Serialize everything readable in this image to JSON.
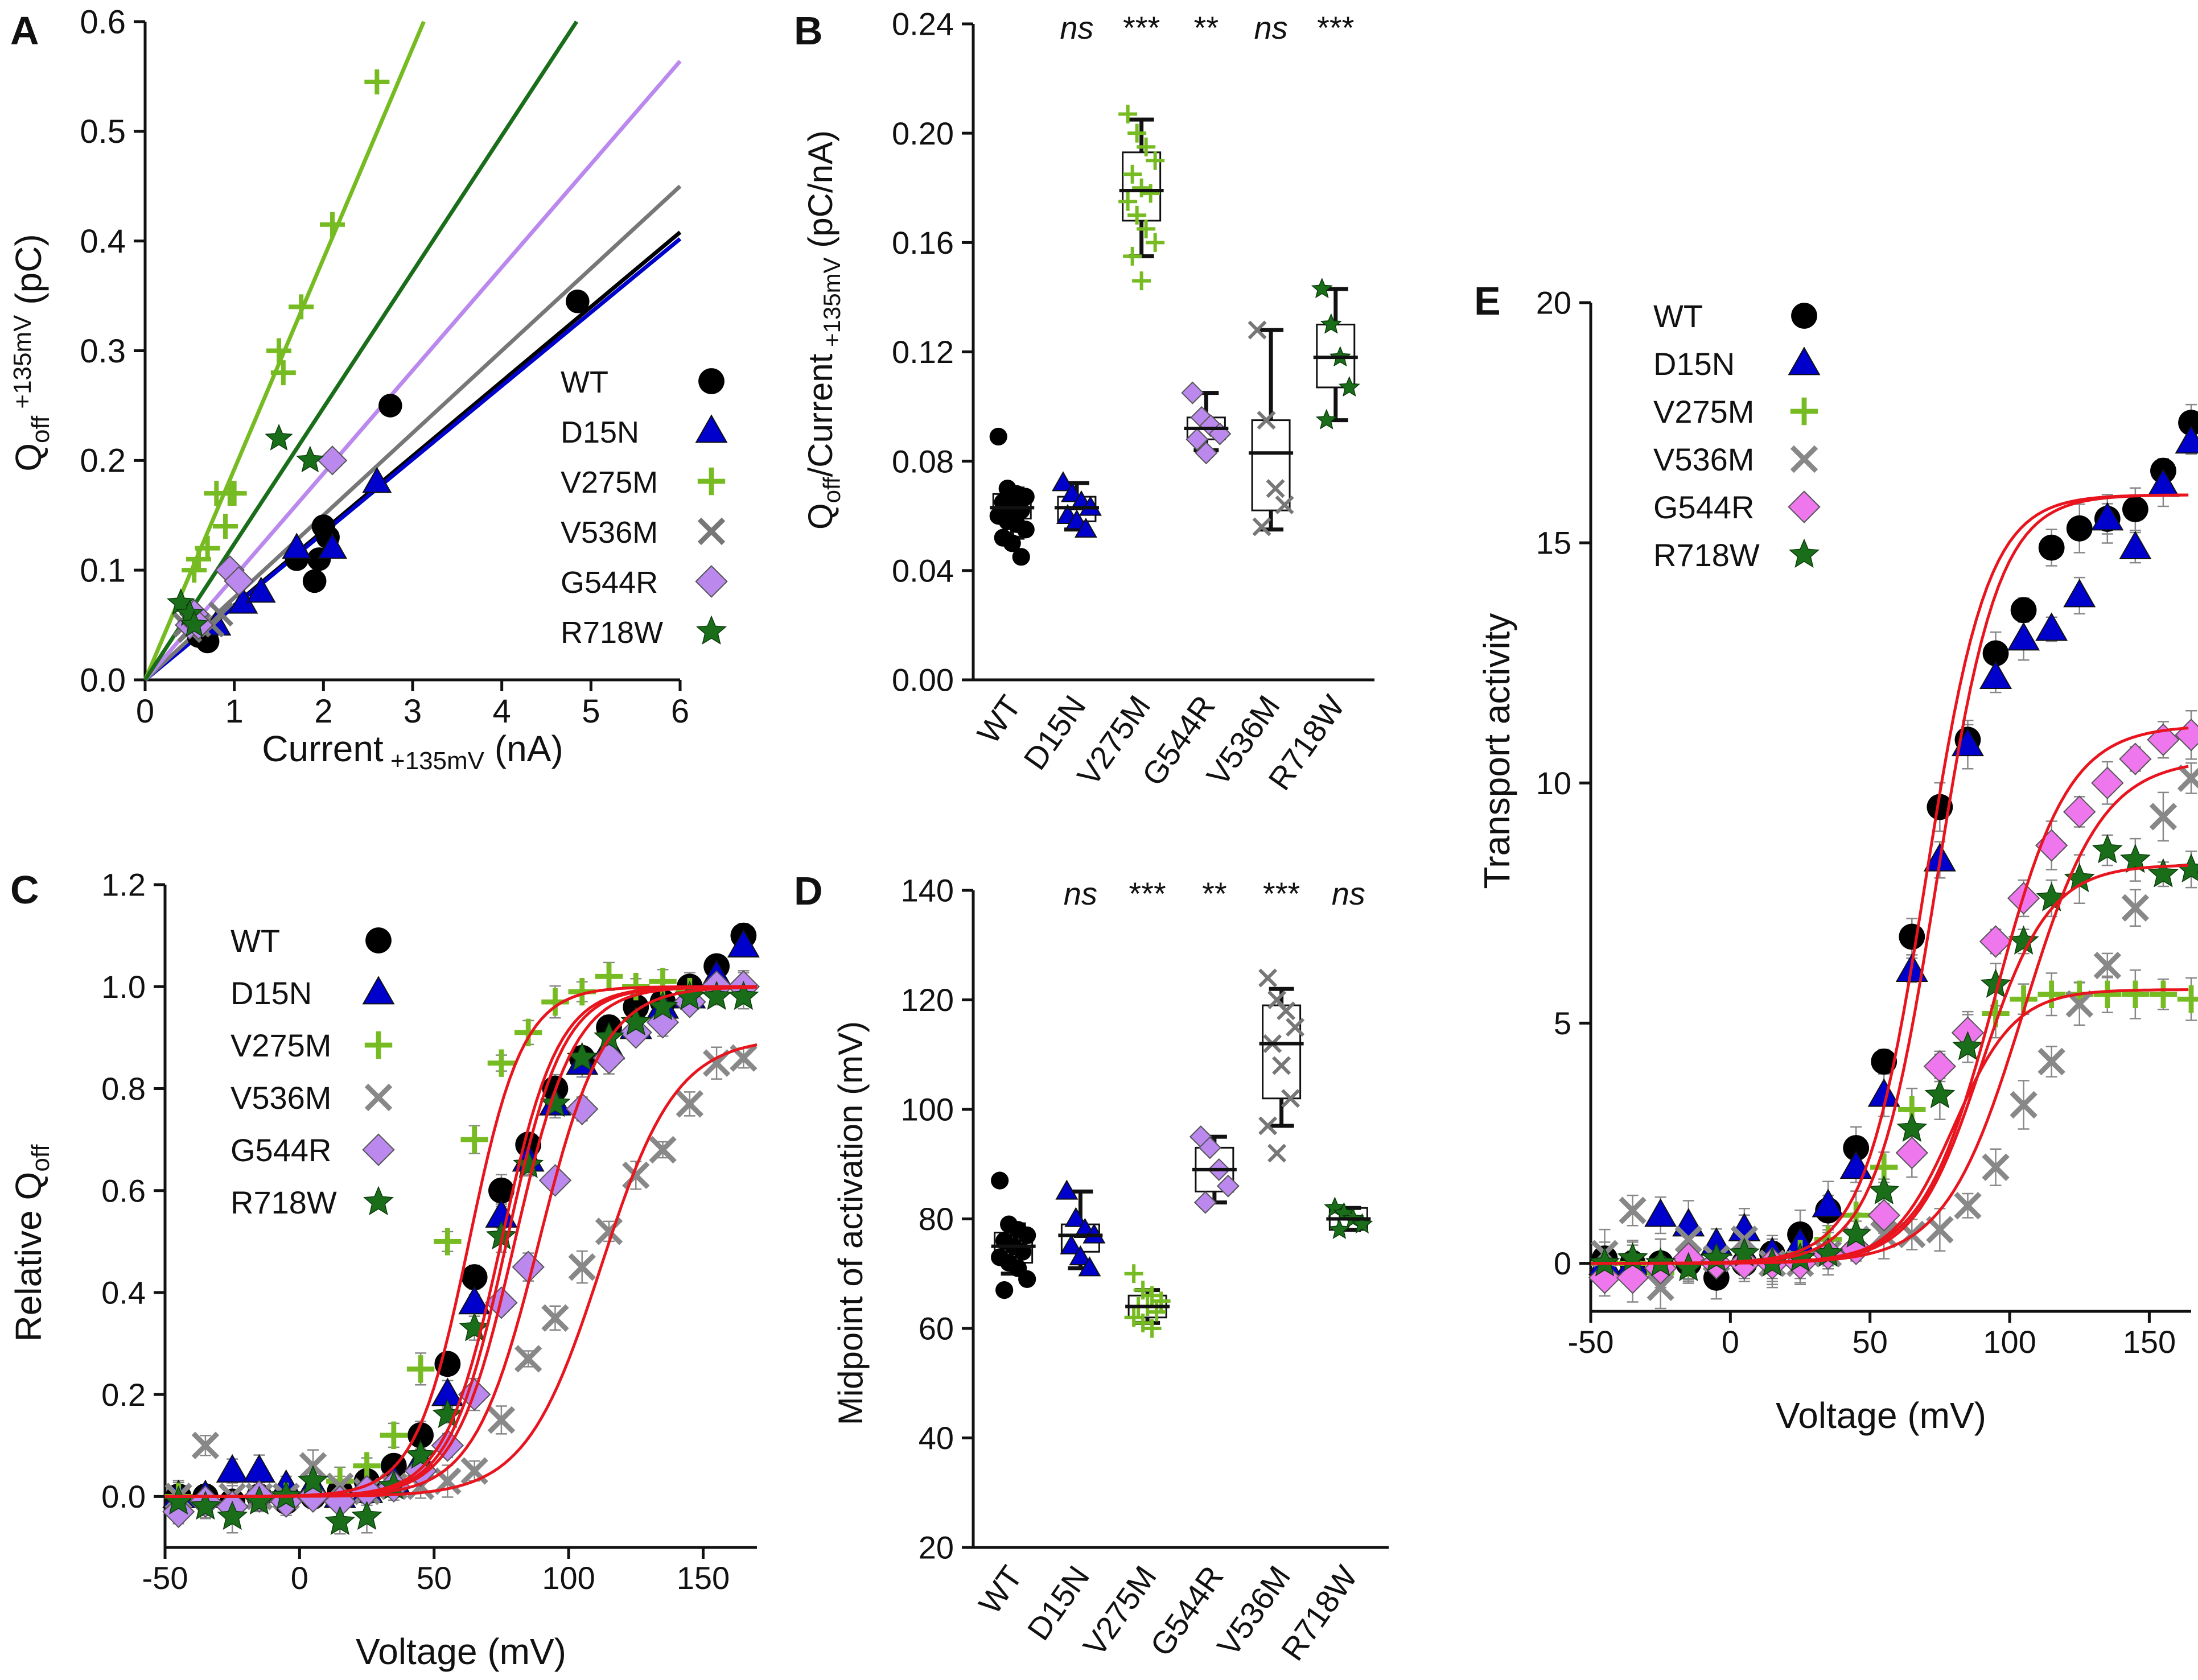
{
  "chart_data": [
    {
      "panel": "A",
      "type": "scatter",
      "xlabel": "Current",
      "xlabel_sub": "+135mV",
      "xlabel_unit": "(nA)",
      "ylabel": "Q",
      "ylabel_sub1": "off",
      "ylabel_sub2": " +135mV",
      "ylabel_unit": " (pC)",
      "xlim": [
        0,
        6
      ],
      "ylim": [
        0,
        0.6
      ],
      "xticks": [
        0,
        1,
        2,
        3,
        4,
        5,
        6
      ],
      "yticks": [
        "0.0",
        "0.1",
        "0.2",
        "0.3",
        "0.4",
        "0.5",
        "0.6"
      ],
      "legend_position": "bottom-right",
      "series": [
        {
          "name": "WT",
          "color": "#000000",
          "marker": "circle",
          "slope": 0.068,
          "points": [
            [
              0.6,
              0.04
            ],
            [
              0.7,
              0.035
            ],
            [
              1.7,
              0.11
            ],
            [
              1.9,
              0.09
            ],
            [
              1.95,
              0.11
            ],
            [
              2.0,
              0.14
            ],
            [
              2.05,
              0.13
            ],
            [
              2.75,
              0.25
            ],
            [
              4.85,
              0.345
            ]
          ]
        },
        {
          "name": "D15N",
          "color": "#0000cc",
          "marker": "triangle",
          "slope": 0.067,
          "points": [
            [
              0.8,
              0.05
            ],
            [
              1.1,
              0.07
            ],
            [
              1.3,
              0.08
            ],
            [
              1.7,
              0.12
            ],
            [
              2.1,
              0.12
            ],
            [
              2.6,
              0.18
            ]
          ]
        },
        {
          "name": "V275M",
          "color": "#77bb22",
          "marker": "plus",
          "slope": 0.192,
          "points": [
            [
              0.55,
              0.1
            ],
            [
              0.6,
              0.11
            ],
            [
              0.7,
              0.12
            ],
            [
              0.8,
              0.17
            ],
            [
              0.9,
              0.14
            ],
            [
              0.95,
              0.17
            ],
            [
              1.0,
              0.17
            ],
            [
              1.5,
              0.3
            ],
            [
              1.55,
              0.28
            ],
            [
              1.75,
              0.34
            ],
            [
              2.1,
              0.415
            ],
            [
              2.6,
              0.545
            ]
          ]
        },
        {
          "name": "V536M",
          "color": "#777777",
          "marker": "x",
          "slope": 0.075,
          "points": [
            [
              0.45,
              0.05
            ],
            [
              0.5,
              0.045
            ],
            [
              0.6,
              0.05
            ],
            [
              0.75,
              0.05
            ],
            [
              0.85,
              0.06
            ]
          ]
        },
        {
          "name": "G544R",
          "color": "#bb88ee",
          "marker": "diamond",
          "slope": 0.094,
          "points": [
            [
              0.5,
              0.05
            ],
            [
              0.55,
              0.06
            ],
            [
              0.6,
              0.05
            ],
            [
              0.95,
              0.1
            ],
            [
              1.05,
              0.09
            ],
            [
              2.1,
              0.2
            ]
          ]
        },
        {
          "name": "R718W",
          "color": "#1a6e1a",
          "marker": "star",
          "slope": 0.124,
          "points": [
            [
              0.4,
              0.07
            ],
            [
              0.5,
              0.06
            ],
            [
              0.55,
              0.05
            ],
            [
              1.5,
              0.22
            ],
            [
              1.85,
              0.2
            ]
          ]
        }
      ]
    },
    {
      "panel": "B",
      "type": "box",
      "ylabel": "Q",
      "ylabel_sub1": "off",
      "ylabel_mid": "/Current",
      "ylabel_sub2": " +135mV",
      "ylabel_unit": " (pC/nA)",
      "ylim": [
        0,
        0.24
      ],
      "yticks": [
        "0.00",
        "0.04",
        "0.08",
        "0.12",
        "0.16",
        "0.20",
        "0.24"
      ],
      "categories": [
        "WT",
        "D15N",
        "V275M",
        "G544R",
        "V536M",
        "R718W"
      ],
      "significance": [
        "",
        "ns",
        "***",
        "**",
        "ns",
        "***"
      ],
      "boxes": [
        {
          "name": "WT",
          "color": "#000000",
          "marker": "circle",
          "q1": 0.059,
          "median": 0.063,
          "q3": 0.068,
          "min": 0.052,
          "max": 0.07,
          "points": [
            0.089,
            0.07,
            0.068,
            0.067,
            0.065,
            0.063,
            0.062,
            0.06,
            0.058,
            0.057,
            0.055,
            0.052,
            0.05,
            0.045
          ]
        },
        {
          "name": "D15N",
          "color": "#0000cc",
          "marker": "triangle",
          "q1": 0.058,
          "median": 0.063,
          "q3": 0.067,
          "min": 0.055,
          "max": 0.072,
          "points": [
            0.072,
            0.068,
            0.065,
            0.063,
            0.06,
            0.058,
            0.055
          ]
        },
        {
          "name": "V275M",
          "color": "#77bb22",
          "marker": "plus",
          "q1": 0.168,
          "median": 0.179,
          "q3": 0.193,
          "min": 0.155,
          "max": 0.205,
          "points": [
            0.207,
            0.2,
            0.195,
            0.19,
            0.185,
            0.18,
            0.178,
            0.175,
            0.17,
            0.165,
            0.16,
            0.155,
            0.146
          ]
        },
        {
          "name": "G544R",
          "color": "#bb88ee",
          "marker": "diamond",
          "q1": 0.088,
          "median": 0.092,
          "q3": 0.096,
          "min": 0.084,
          "max": 0.105,
          "points": [
            0.105,
            0.096,
            0.093,
            0.09,
            0.088,
            0.083
          ]
        },
        {
          "name": "V536M",
          "color": "#777777",
          "marker": "x",
          "q1": 0.062,
          "median": 0.083,
          "q3": 0.095,
          "min": 0.055,
          "max": 0.128,
          "points": [
            0.128,
            0.095,
            0.07,
            0.064,
            0.056
          ]
        },
        {
          "name": "R718W",
          "color": "#1a6e1a",
          "marker": "star",
          "q1": 0.107,
          "median": 0.118,
          "q3": 0.13,
          "min": 0.095,
          "max": 0.143,
          "points": [
            0.143,
            0.13,
            0.118,
            0.107,
            0.095
          ]
        }
      ]
    },
    {
      "panel": "C",
      "type": "line",
      "xlabel": "Voltage (mV)",
      "ylabel": "Relative Q",
      "ylabel_sub1": "off",
      "xlim": [
        -50,
        170
      ],
      "ylim": [
        -0.1,
        1.2
      ],
      "xticks": [
        -50,
        0,
        50,
        100,
        150
      ],
      "yticks": [
        "0.0",
        "0.2",
        "0.4",
        "0.6",
        "0.8",
        "1.0",
        "1.2"
      ],
      "legend_position": "top-left",
      "voltages": [
        -45,
        -35,
        -25,
        -15,
        -5,
        5,
        15,
        25,
        35,
        45,
        55,
        65,
        75,
        85,
        95,
        105,
        115,
        125,
        135,
        145,
        155,
        165
      ],
      "series": [
        {
          "name": "WT",
          "color": "#000000",
          "marker": "circle",
          "fit": {
            "vhalf": 75,
            "k": 10.5,
            "amp": 1.0
          },
          "values": [
            0.0,
            0.0,
            -0.01,
            0.0,
            -0.01,
            0.0,
            0.01,
            0.03,
            0.06,
            0.12,
            0.26,
            0.43,
            0.6,
            0.69,
            0.8,
            0.86,
            0.92,
            0.96,
            0.97,
            1.0,
            1.04,
            1.1
          ]
        },
        {
          "name": "D15N",
          "color": "#0000cc",
          "marker": "triangle",
          "fit": {
            "vhalf": 77,
            "k": 10.5,
            "amp": 1.0
          },
          "values": [
            0.0,
            0.0,
            0.05,
            0.05,
            0.02,
            0.02,
            0.0,
            0.01,
            0.03,
            0.07,
            0.2,
            0.38,
            0.55,
            0.66,
            0.77,
            0.85,
            0.88,
            0.92,
            0.96,
            0.98,
            1.02,
            1.08
          ]
        },
        {
          "name": "V275M",
          "color": "#77bb22",
          "marker": "plus",
          "fit": {
            "vhalf": 63,
            "k": 10,
            "amp": 1.0
          },
          "values": [
            0.0,
            -0.01,
            -0.02,
            0.0,
            0.0,
            0.0,
            0.03,
            0.06,
            0.12,
            0.25,
            0.5,
            0.7,
            0.85,
            0.91,
            0.97,
            0.99,
            1.02,
            1.0,
            1.01,
            0.99,
            1.0,
            1.0
          ]
        },
        {
          "name": "V536M",
          "color": "#888888",
          "marker": "x",
          "fit": {
            "vhalf": 112,
            "k": 14,
            "amp": 0.9
          },
          "values": [
            0.0,
            0.1,
            0.0,
            0.0,
            0.0,
            0.06,
            0.02,
            0.01,
            0.02,
            0.02,
            0.03,
            0.05,
            0.15,
            0.27,
            0.35,
            0.45,
            0.52,
            0.63,
            0.68,
            0.77,
            0.85,
            0.86
          ]
        },
        {
          "name": "G544R",
          "color": "#bb88ee",
          "marker": "diamond",
          "fit": {
            "vhalf": 89,
            "k": 12,
            "amp": 1.0
          },
          "values": [
            -0.03,
            -0.01,
            -0.02,
            0.0,
            -0.01,
            0.0,
            -0.01,
            0.01,
            0.02,
            0.05,
            0.1,
            0.2,
            0.38,
            0.45,
            0.62,
            0.76,
            0.86,
            0.91,
            0.93,
            0.97,
            1.0,
            1.0
          ]
        },
        {
          "name": "R718W",
          "color": "#1a6e1a",
          "marker": "star",
          "fit": {
            "vhalf": 80,
            "k": 11,
            "amp": 1.0
          },
          "values": [
            -0.01,
            -0.02,
            -0.04,
            -0.01,
            0.0,
            0.03,
            -0.05,
            -0.04,
            0.02,
            0.08,
            0.16,
            0.33,
            0.51,
            0.65,
            0.77,
            0.86,
            0.9,
            0.93,
            0.96,
            0.98,
            0.98,
            0.98
          ]
        }
      ]
    },
    {
      "panel": "D",
      "type": "box",
      "ylabel": "Midpoint of activation (mV)",
      "ylim": [
        20,
        140
      ],
      "yticks": [
        "20",
        "40",
        "60",
        "80",
        "100",
        "120",
        "140"
      ],
      "categories": [
        "WT",
        "D15N",
        "V275M",
        "G544R",
        "V536M",
        "R718W"
      ],
      "significance": [
        "",
        "ns",
        "***",
        "**",
        "***",
        "ns"
      ],
      "boxes": [
        {
          "name": "WT",
          "color": "#000000",
          "marker": "circle",
          "q1": 72,
          "median": 75,
          "q3": 77.5,
          "min": 70,
          "max": 79,
          "points": [
            87,
            79,
            78,
            77,
            76,
            75,
            74,
            73,
            72,
            71,
            69,
            67
          ]
        },
        {
          "name": "D15N",
          "color": "#0000cc",
          "marker": "triangle",
          "q1": 74,
          "median": 77,
          "q3": 79,
          "min": 71,
          "max": 85,
          "points": [
            85,
            80,
            78,
            77,
            75,
            73,
            71
          ]
        },
        {
          "name": "V275M",
          "color": "#77bb22",
          "marker": "plus",
          "q1": 62,
          "median": 64,
          "q3": 66,
          "min": 61,
          "max": 67,
          "points": [
            70,
            67,
            66,
            65,
            64,
            64,
            63,
            62,
            61,
            60
          ]
        },
        {
          "name": "G544R",
          "color": "#bb88ee",
          "marker": "diamond",
          "q1": 85,
          "median": 89,
          "q3": 93,
          "min": 83,
          "max": 95,
          "points": [
            95,
            93,
            89,
            86,
            83
          ]
        },
        {
          "name": "V536M",
          "color": "#777777",
          "marker": "x",
          "q1": 102,
          "median": 112,
          "q3": 119,
          "min": 97,
          "max": 122,
          "points": [
            124,
            120,
            118,
            115,
            112,
            108,
            102,
            97,
            92
          ]
        },
        {
          "name": "R718W",
          "color": "#1a6e1a",
          "marker": "star",
          "q1": 78,
          "median": 80,
          "q3": 82,
          "min": 78,
          "max": 82,
          "points": [
            82,
            81,
            80,
            79,
            78
          ]
        }
      ]
    },
    {
      "panel": "E",
      "type": "line",
      "xlabel": "Voltage (mV)",
      "ylabel": "Transport activity",
      "xlim": [
        -50,
        165
      ],
      "ylim": [
        -1,
        20
      ],
      "xticks": [
        -50,
        0,
        50,
        100,
        150
      ],
      "yticks": [
        "0",
        "5",
        "10",
        "15",
        "20"
      ],
      "legend_position": "top-left",
      "voltages": [
        -45,
        -35,
        -25,
        -15,
        -5,
        5,
        15,
        25,
        35,
        45,
        55,
        65,
        75,
        85,
        95,
        105,
        115,
        125,
        135,
        145,
        155,
        165
      ],
      "series": [
        {
          "name": "WT",
          "color": "#000000",
          "marker": "circle",
          "fit": {
            "vhalf": 70,
            "k": 11,
            "amp": 16
          },
          "values": [
            0.1,
            0.0,
            0.0,
            0.0,
            -0.3,
            0.0,
            0.2,
            0.6,
            1.1,
            2.4,
            4.2,
            6.8,
            9.5,
            10.9,
            12.7,
            13.6,
            14.9,
            15.3,
            15.5,
            15.7,
            16.5,
            17.5
          ]
        },
        {
          "name": "D15N",
          "color": "#0000cc",
          "marker": "triangle",
          "fit": {
            "vhalf": 74,
            "k": 11,
            "amp": 16
          },
          "values": [
            0.0,
            0.0,
            1.0,
            0.8,
            0.4,
            0.7,
            0.2,
            0.4,
            1.2,
            2.0,
            3.5,
            6.1,
            8.4,
            10.8,
            12.2,
            13.0,
            13.2,
            13.9,
            15.5,
            14.9,
            16.2,
            17.1
          ]
        },
        {
          "name": "V275M",
          "color": "#77bb22",
          "marker": "plus",
          "fit": {
            "vhalf": 80,
            "k": 11,
            "amp": 5.7
          },
          "values": [
            0.0,
            0.0,
            -0.2,
            0.0,
            0.0,
            0.0,
            0.0,
            0.2,
            0.5,
            1.0,
            2.0,
            3.2,
            4.1,
            4.8,
            5.2,
            5.5,
            5.6,
            5.6,
            5.6,
            5.6,
            5.6,
            5.5
          ]
        },
        {
          "name": "V536M",
          "color": "#888888",
          "marker": "x",
          "fit": {
            "vhalf": 105,
            "k": 14,
            "amp": 10.5
          },
          "values": [
            0.2,
            1.1,
            -0.5,
            0.5,
            0.1,
            0.5,
            0.0,
            0.0,
            0.2,
            0.5,
            0.6,
            0.6,
            0.7,
            1.2,
            2.0,
            3.3,
            4.2,
            5.4,
            6.2,
            7.4,
            9.3,
            10.1
          ]
        },
        {
          "name": "G544R",
          "color": "#ee77ee",
          "marker": "diamond",
          "fit": {
            "vhalf": 95,
            "k": 13,
            "amp": 11.2
          },
          "values": [
            -0.3,
            -0.3,
            -0.1,
            0.1,
            0.0,
            0.0,
            0.0,
            0.0,
            0.2,
            0.3,
            1.0,
            2.3,
            4.1,
            4.8,
            6.7,
            7.6,
            8.7,
            9.4,
            10.0,
            10.5,
            10.9,
            11.0
          ]
        },
        {
          "name": "R718W",
          "color": "#1a6e1a",
          "marker": "star",
          "fit": {
            "vhalf": 90,
            "k": 12,
            "amp": 8.3
          },
          "values": [
            0.0,
            0.1,
            0.0,
            -0.1,
            0.1,
            0.2,
            0.0,
            0.1,
            0.2,
            0.6,
            1.5,
            2.8,
            3.5,
            4.5,
            5.8,
            6.7,
            7.6,
            8.0,
            8.6,
            8.4,
            8.1,
            8.2
          ]
        }
      ]
    }
  ]
}
